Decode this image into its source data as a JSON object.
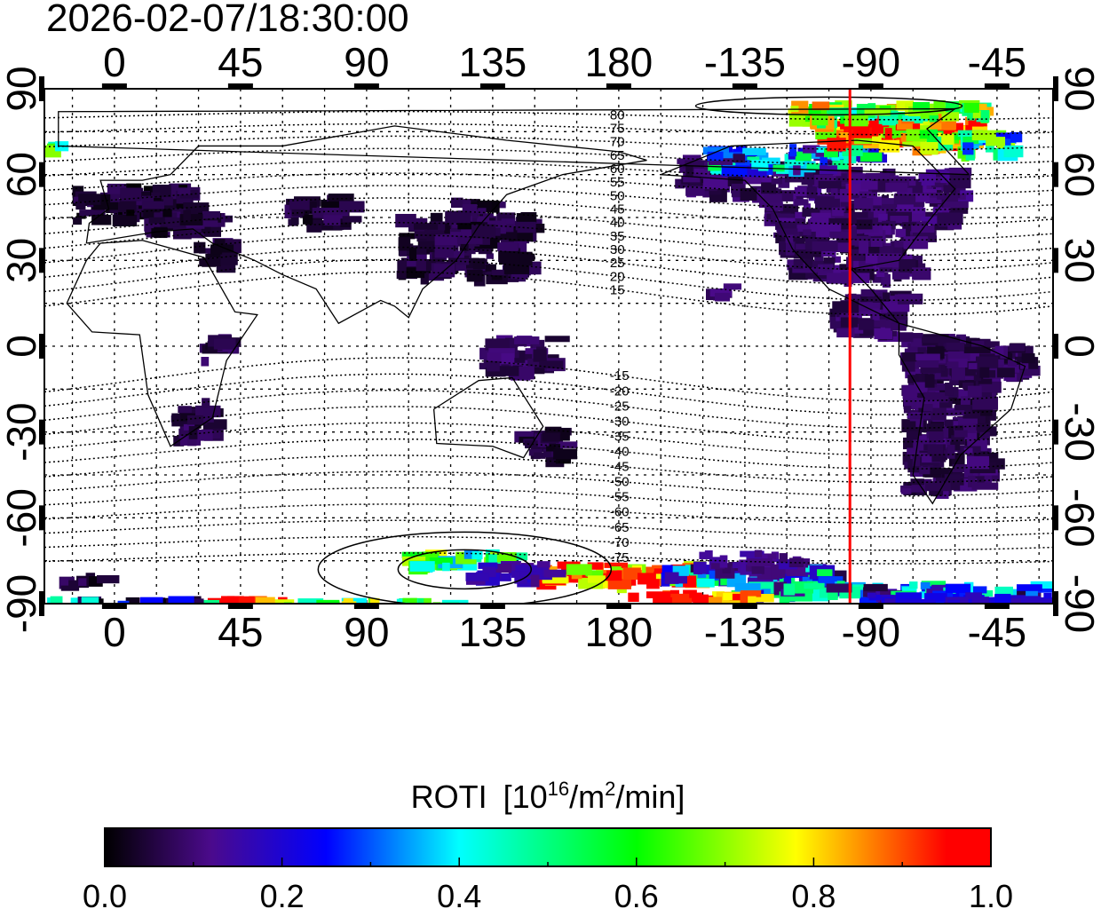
{
  "title": "2026-02-07/18:30:00",
  "map": {
    "projection": "equirectangular",
    "lon_range": [
      -25,
      335
    ],
    "lat_range": [
      -90,
      90
    ],
    "top_ticks": [
      "0",
      "45",
      "90",
      "135",
      "180",
      "-135",
      "-90",
      "-45"
    ],
    "bottom_ticks": [
      "0",
      "45",
      "90",
      "135",
      "180",
      "-135",
      "-90",
      "-45"
    ],
    "left_ticks": [
      "90",
      "60",
      "30",
      "0",
      "-30",
      "-60",
      "-90"
    ],
    "right_ticks": [
      "90",
      "60",
      "30",
      "0",
      "-30",
      "-60",
      "-90"
    ],
    "tick_lons": [
      0,
      45,
      90,
      135,
      180,
      225,
      270,
      315
    ],
    "tick_lats": [
      90,
      60,
      30,
      0,
      -30,
      -60,
      -90
    ],
    "marker_line_lon": -97.5,
    "marker_line_color": "#ff0000",
    "contour_labels": [
      "80",
      "75",
      "70",
      "65",
      "60",
      "55",
      "50",
      "45",
      "40",
      "35",
      "30",
      "25",
      "20",
      "15",
      "-15",
      "-20",
      "-25",
      "-30",
      "-35",
      "-40",
      "-45",
      "-50",
      "-55",
      "-60",
      "-65",
      "-70",
      "-75"
    ],
    "contour_values": [
      80,
      75,
      70,
      65,
      60,
      55,
      50,
      45,
      40,
      35,
      30,
      25,
      20,
      15,
      -15,
      -20,
      -25,
      -30,
      -35,
      -40,
      -45,
      -50,
      -55,
      -60,
      -65,
      -70,
      -75
    ],
    "roti_patches": [
      [
        -15,
        45,
        40,
        12,
        0.04
      ],
      [
        10,
        40,
        25,
        8,
        0.05
      ],
      [
        28,
        28,
        10,
        10,
        0.06
      ],
      [
        60,
        44,
        22,
        10,
        0.05
      ],
      [
        100,
        25,
        45,
        22,
        0.05
      ],
      [
        118,
        40,
        14,
        12,
        0.05
      ],
      [
        130,
        -8,
        25,
        12,
        0.08
      ],
      [
        142,
        -38,
        16,
        10,
        0.05
      ],
      [
        20,
        -32,
        12,
        14,
        0.06
      ],
      [
        30,
        -5,
        8,
        10,
        0.06
      ],
      [
        -160,
        55,
        30,
        12,
        0.08
      ],
      [
        -130,
        45,
        70,
        18,
        0.09
      ],
      [
        -125,
        25,
        50,
        20,
        0.08
      ],
      [
        -150,
        18,
        8,
        5,
        0.08
      ],
      [
        -105,
        5,
        25,
        15,
        0.08
      ],
      [
        -80,
        -50,
        30,
        55,
        0.07
      ],
      [
        -75,
        -10,
        40,
        12,
        0.07
      ],
      [
        -150,
        63,
        45,
        7,
        0.3
      ],
      [
        -120,
        67,
        30,
        5,
        0.35
      ],
      [
        -110,
        72,
        55,
        9,
        0.9
      ],
      [
        -80,
        70,
        20,
        6,
        0.7
      ],
      [
        -120,
        80,
        70,
        6,
        0.65
      ],
      [
        -60,
        68,
        20,
        8,
        0.5
      ],
      [
        -25,
        70,
        4,
        3,
        0.55
      ],
      [
        150,
        -82,
        55,
        7,
        0.9
      ],
      [
        -165,
        -82,
        60,
        6,
        0.3
      ],
      [
        -140,
        -86,
        110,
        4,
        0.3
      ],
      [
        -95,
        -89,
        70,
        3,
        0.2
      ],
      [
        100,
        -76,
        40,
        5,
        0.55
      ],
      [
        125,
        -80,
        30,
        5,
        0.15
      ],
      [
        30,
        -90,
        30,
        3,
        0.95
      ],
      [
        -178,
        -88,
        45,
        3,
        1.0
      ],
      [
        60,
        -90,
        60,
        2,
        0.6
      ],
      [
        -25,
        -89,
        55,
        2,
        0.25
      ],
      [
        -20,
        -82,
        15,
        3,
        0.05
      ],
      [
        -155,
        -77,
        40,
        6,
        0.12
      ]
    ]
  },
  "colorbar": {
    "title": "ROTI",
    "unit_prefix": "[10",
    "unit_exp1": "16",
    "unit_mid": "/m",
    "unit_exp2": "2",
    "unit_suffix": "/min]",
    "tick_labels": [
      "0.0",
      "0.2",
      "0.4",
      "0.6",
      "0.8",
      "1.0"
    ],
    "range": [
      0,
      1
    ],
    "colors": [
      "#000000",
      "#4b0a8c",
      "#0000ff",
      "#00ffff",
      "#00ff00",
      "#ffff00",
      "#ff0000"
    ]
  }
}
